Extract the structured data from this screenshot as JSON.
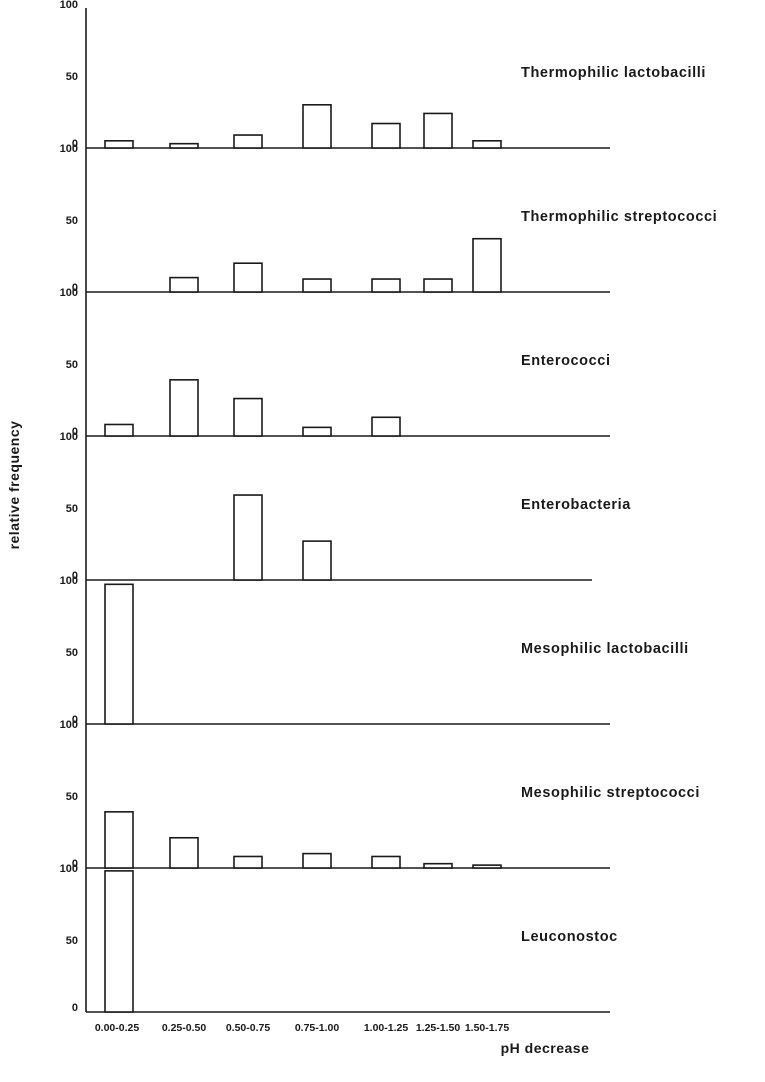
{
  "chart_data": {
    "type": "bar",
    "ylabel": "relative frequency",
    "xlabel": "pH decrease",
    "categories": [
      "0.00-0.25",
      "0.25-0.50",
      "0.50-0.75",
      "0.75-1.00",
      "1.00-1.25",
      "1.25-1.50",
      "1.50-1.75"
    ],
    "yticks": [
      "0",
      "50",
      "100"
    ],
    "ylim": [
      0,
      100
    ],
    "grid": false,
    "panels": [
      {
        "title": "Thermophilic lactobacilli",
        "values": [
          5,
          3,
          9,
          30,
          17,
          24,
          5
        ]
      },
      {
        "title": "Thermophilic streptococci",
        "values": [
          0,
          10,
          20,
          9,
          9,
          9,
          37
        ]
      },
      {
        "title": "Enterococci",
        "values": [
          8,
          39,
          26,
          6,
          13,
          0,
          0
        ]
      },
      {
        "title": "Enterobacteria",
        "values": [
          0,
          0,
          59,
          27,
          0,
          0,
          0
        ]
      },
      {
        "title": "Mesophilic lactobacilli",
        "values": [
          97,
          0,
          0,
          0,
          0,
          0,
          0
        ]
      },
      {
        "title": "Mesophilic streptococci",
        "values": [
          39,
          21,
          8,
          10,
          8,
          3,
          2
        ]
      },
      {
        "title": "Leuconostoc",
        "values": [
          98,
          0,
          0,
          0,
          0,
          0,
          0
        ]
      }
    ]
  }
}
